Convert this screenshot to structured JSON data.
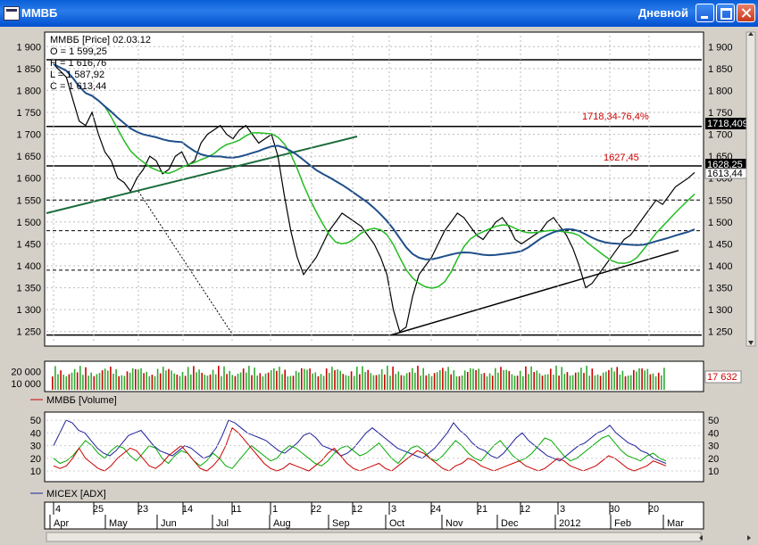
{
  "window": {
    "title": "ММВБ",
    "period": "Дневной",
    "icon": "chart-window-icon"
  },
  "price_panel": {
    "header": "ММВБ [Price] 02.03.12",
    "ohlc": [
      "O = 1 599,25",
      "H = 1 616,76",
      "L = 1 587,92",
      "C = 1 613,44"
    ],
    "annotations": [
      {
        "text": "1718,34-76,4%",
        "color": "#cc0000"
      },
      {
        "text": "1627,45",
        "color": "#cc0000"
      }
    ],
    "right_labels": [
      "1718,409",
      "1628,25",
      "1613,44"
    ]
  },
  "volume_panel": {
    "legend": "ММВБ [Volume]",
    "last_value": "17 632"
  },
  "adx_panel": {
    "legend": "MICEX [ADX]"
  },
  "time_axis": {
    "days": [
      "4",
      "25",
      "23",
      "14",
      "11",
      "1",
      "22",
      "12",
      "3",
      "24",
      "21",
      "12",
      "3",
      "30",
      "20"
    ],
    "months": [
      "Apr",
      "May",
      "Jun",
      "Jul",
      "Aug",
      "Sep",
      "Oct",
      "Nov",
      "Dec",
      "2012",
      "Feb",
      "Mar"
    ]
  },
  "chart_data": [
    {
      "type": "line",
      "title": "ММВБ [Price] 02.03.12",
      "y_ticks": [
        "1 900",
        "1 850",
        "1 800",
        "1 750",
        "1 700",
        "1 650",
        "1 600",
        "1 550",
        "1 500",
        "1 450",
        "1 400",
        "1 350",
        "1 300",
        "1 250"
      ],
      "ylim": [
        1225,
        1925
      ],
      "grid": true,
      "series": [
        {
          "values": [
            1860,
            1845,
            1830,
            1780,
            1730,
            1720,
            1750,
            1700,
            1660,
            1640,
            1600,
            1590,
            1570,
            1600,
            1620,
            1650,
            1640,
            1610,
            1620,
            1650,
            1660,
            1630,
            1640,
            1680,
            1700,
            1710,
            1720,
            1700,
            1690,
            1710,
            1720,
            1700,
            1680,
            1690,
            1700,
            1650,
            1560,
            1480,
            1420,
            1380,
            1400,
            1420,
            1450,
            1480,
            1500,
            1520,
            1510,
            1500,
            1490,
            1470,
            1450,
            1420,
            1380,
            1300,
            1250,
            1260,
            1330,
            1380,
            1400,
            1420,
            1450,
            1480,
            1500,
            1520,
            1510,
            1490,
            1470,
            1460,
            1480,
            1500,
            1510,
            1490,
            1460,
            1450,
            1460,
            1470,
            1480,
            1500,
            1510,
            1490,
            1470,
            1440,
            1400,
            1350,
            1360,
            1380,
            1400,
            1420,
            1440,
            1460,
            1470,
            1490,
            1510,
            1530,
            1550,
            1540,
            1560,
            1580,
            1590,
            1600,
            1613
          ]
        }
      ],
      "levels": [
        1870,
        1718,
        1628,
        1550,
        1480,
        1390,
        1242
      ]
    },
    {
      "type": "bar",
      "title": "ММВБ [Volume]",
      "y_ticks": [
        "20 000",
        "10 000"
      ],
      "ylim": [
        5000,
        27000
      ]
    },
    {
      "type": "line",
      "title": "MICEX [ADX]",
      "y_ticks": [
        "50",
        "40",
        "30",
        "20",
        "10"
      ],
      "ylim": [
        3,
        55
      ],
      "series": [
        {
          "name": "MICEX [ADX]",
          "color": "#1f1f9a",
          "values": [
            30,
            40,
            50,
            48,
            42,
            40,
            34,
            28,
            24,
            22,
            26,
            32,
            38,
            40,
            42,
            36,
            30,
            26,
            24,
            22,
            26,
            30,
            28,
            24,
            20,
            22,
            28,
            38,
            50,
            48,
            44,
            40,
            38,
            36,
            34,
            30,
            26,
            24,
            28,
            32,
            38,
            40,
            36,
            30,
            28,
            26,
            22,
            24,
            28,
            34,
            40,
            44,
            40,
            36,
            32,
            28,
            26,
            24,
            22,
            20,
            24,
            28,
            34,
            40,
            48,
            42,
            38,
            32,
            28,
            26,
            22,
            20,
            24,
            30,
            36,
            40,
            34,
            30,
            26,
            22,
            20,
            18,
            22,
            26,
            30,
            32,
            36,
            40,
            42,
            46,
            40,
            36,
            32,
            30,
            26,
            24,
            20,
            18,
            16
          ]
        },
        {
          "color": "#00aa00",
          "values": [
            20,
            16,
            18,
            22,
            28,
            34,
            30,
            24,
            20,
            26,
            30,
            28,
            22,
            18,
            24,
            30,
            28,
            20,
            16,
            22,
            26,
            24,
            18,
            14,
            18,
            24,
            20,
            14,
            12,
            18,
            24,
            30,
            26,
            22,
            18,
            20,
            26,
            30,
            28,
            24,
            20,
            16,
            14,
            18,
            24,
            28,
            30,
            26,
            22,
            24,
            28,
            32,
            26,
            20,
            16,
            22,
            28,
            30,
            26,
            20,
            18,
            22,
            28,
            34,
            30,
            24,
            20,
            18,
            24,
            30,
            34,
            28,
            22,
            18,
            20,
            24,
            30,
            36,
            34,
            28,
            22,
            18,
            20,
            24,
            28,
            32,
            36,
            38,
            32,
            26,
            22,
            20,
            18,
            22,
            24,
            20,
            18
          ]
        },
        {
          "color": "#cc0000",
          "values": [
            14,
            12,
            14,
            20,
            28,
            20,
            16,
            12,
            10,
            14,
            20,
            24,
            28,
            26,
            20,
            14,
            12,
            16,
            22,
            26,
            30,
            24,
            18,
            12,
            10,
            14,
            20,
            30,
            44,
            40,
            34,
            28,
            22,
            16,
            12,
            10,
            12,
            16,
            14,
            12,
            10,
            14,
            18,
            24,
            28,
            22,
            16,
            12,
            10,
            12,
            14,
            16,
            12,
            10,
            14,
            18,
            22,
            26,
            24,
            20,
            16,
            12,
            10,
            14,
            16,
            20,
            18,
            14,
            12,
            10,
            12,
            14,
            16,
            18,
            14,
            12,
            10,
            12,
            16,
            20,
            18,
            14,
            12,
            10,
            12,
            14,
            18,
            22,
            20,
            16,
            12,
            10,
            12,
            14,
            18,
            16,
            14
          ]
        }
      ]
    }
  ]
}
